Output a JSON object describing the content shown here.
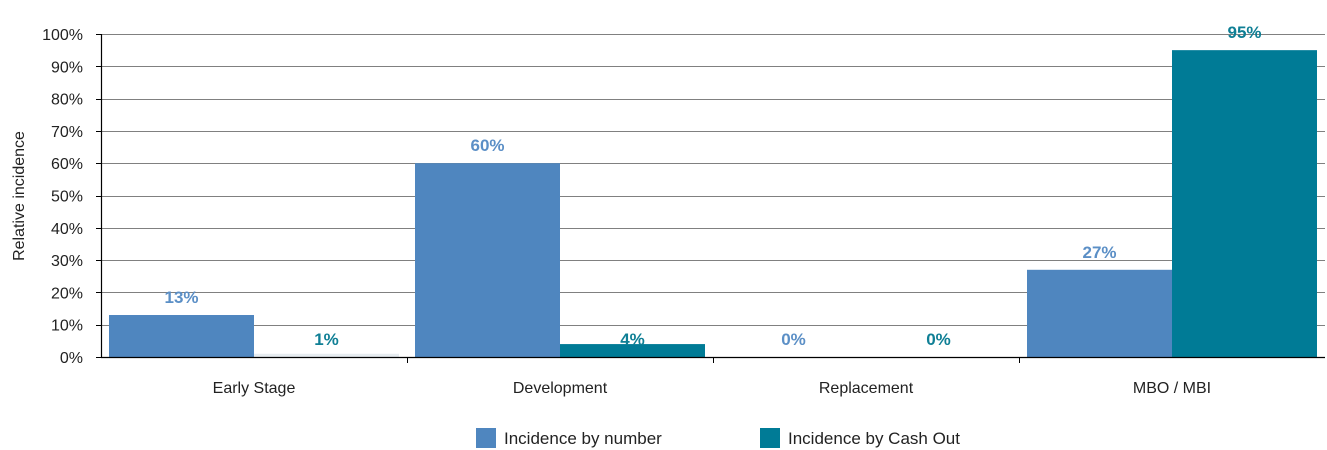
{
  "chart_data": {
    "type": "bar",
    "title": "",
    "xlabel": "",
    "ylabel": "Relative incidence",
    "categories": [
      "Early Stage",
      "Development",
      "Replacement",
      "MBO / MBI"
    ],
    "series": [
      {
        "name": "Incidence by number",
        "color": "#4f86bf",
        "label_color": "#5b8fc6",
        "values": [
          13,
          60,
          0,
          27
        ],
        "data_labels": [
          "13%",
          "60%",
          "0%",
          "27%"
        ]
      },
      {
        "name": "Incidence by Cash Out",
        "color": "#007b96",
        "label_color": "#0f7f95",
        "values": [
          1,
          4,
          0,
          95
        ],
        "data_labels": [
          "1%",
          "4%",
          "0%",
          "95%"
        ]
      }
    ],
    "ylim": [
      0,
      100
    ],
    "yticks": [
      0,
      10,
      20,
      30,
      40,
      50,
      60,
      70,
      80,
      90,
      100
    ],
    "ytick_labels": [
      "0%",
      "10%",
      "20%",
      "30%",
      "40%",
      "50%",
      "60%",
      "70%",
      "80%",
      "90%",
      "100%"
    ],
    "grid": true,
    "legend_position": "bottom"
  },
  "colors": {
    "grid": "#808080",
    "axis": "#000000",
    "early_stage_cash_out_bar": "#e6ecf0"
  }
}
